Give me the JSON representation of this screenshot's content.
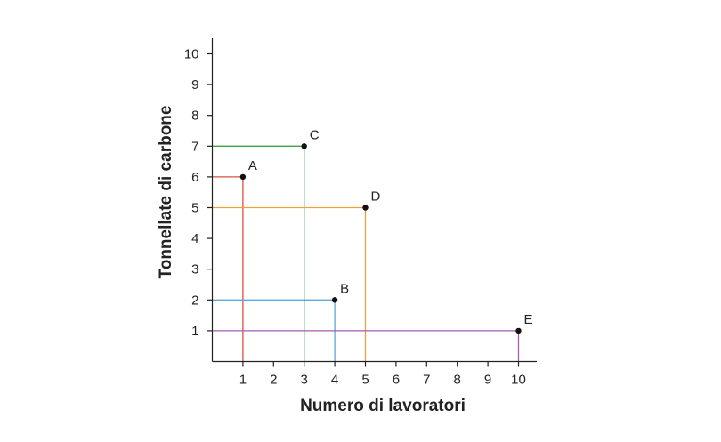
{
  "chart_data": {
    "type": "scatter",
    "xlabel": "Numero di lavoratori",
    "ylabel": "Tonnellate di carbone",
    "xlim": [
      0,
      10
    ],
    "ylim": [
      0,
      10
    ],
    "x_ticks": [
      1,
      2,
      3,
      4,
      5,
      6,
      7,
      8,
      9,
      10
    ],
    "y_ticks": [
      1,
      2,
      3,
      4,
      5,
      6,
      7,
      8,
      9,
      10
    ],
    "grid": false,
    "guide_lines": true,
    "points": [
      {
        "label": "A",
        "x": 1,
        "y": 6,
        "color": "#d9513a"
      },
      {
        "label": "B",
        "x": 4,
        "y": 2,
        "color": "#5aa9de"
      },
      {
        "label": "C",
        "x": 3,
        "y": 7,
        "color": "#3aa44a"
      },
      {
        "label": "D",
        "x": 5,
        "y": 5,
        "color": "#f0a040"
      },
      {
        "label": "E",
        "x": 10,
        "y": 1,
        "color": "#a65eaf"
      }
    ]
  }
}
